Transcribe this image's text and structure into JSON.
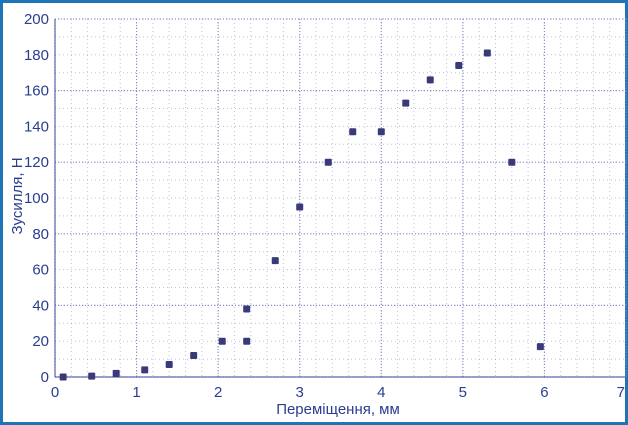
{
  "chart_data": {
    "type": "scatter",
    "title": "",
    "xlabel": "Переміщення, мм",
    "ylabel": "Зусилля, Н",
    "xlim": [
      0,
      7
    ],
    "ylim": [
      0,
      200
    ],
    "x_ticks": [
      "0",
      "1",
      "2",
      "3",
      "4",
      "5",
      "6",
      "7"
    ],
    "y_ticks": [
      "0",
      "20",
      "40",
      "60",
      "80",
      "100",
      "120",
      "140",
      "160",
      "180",
      "200"
    ],
    "grid": "dotted, major every 1 mm and 40 N; minor every 0.2 mm and 10 N",
    "legend": "none",
    "colors": {
      "frame": "#1f73b7",
      "text": "#2a3d8f",
      "markers": "#3a3a7a",
      "grid": "#8c8cc8"
    },
    "series": [
      {
        "points": [
          {
            "x": 0.1,
            "y": 0
          },
          {
            "x": 0.45,
            "y": 0.5
          },
          {
            "x": 0.75,
            "y": 2
          },
          {
            "x": 1.1,
            "y": 4
          },
          {
            "x": 1.4,
            "y": 7
          },
          {
            "x": 1.7,
            "y": 12
          },
          {
            "x": 2.05,
            "y": 20
          },
          {
            "x": 2.35,
            "y": 20
          },
          {
            "x": 2.35,
            "y": 38
          },
          {
            "x": 2.7,
            "y": 65
          },
          {
            "x": 3.0,
            "y": 95
          },
          {
            "x": 3.35,
            "y": 120
          },
          {
            "x": 3.65,
            "y": 137
          },
          {
            "x": 4.0,
            "y": 137
          },
          {
            "x": 4.3,
            "y": 153
          },
          {
            "x": 4.6,
            "y": 166
          },
          {
            "x": 4.95,
            "y": 174
          },
          {
            "x": 5.3,
            "y": 181
          },
          {
            "x": 5.6,
            "y": 120
          },
          {
            "x": 5.95,
            "y": 17
          }
        ]
      }
    ]
  }
}
